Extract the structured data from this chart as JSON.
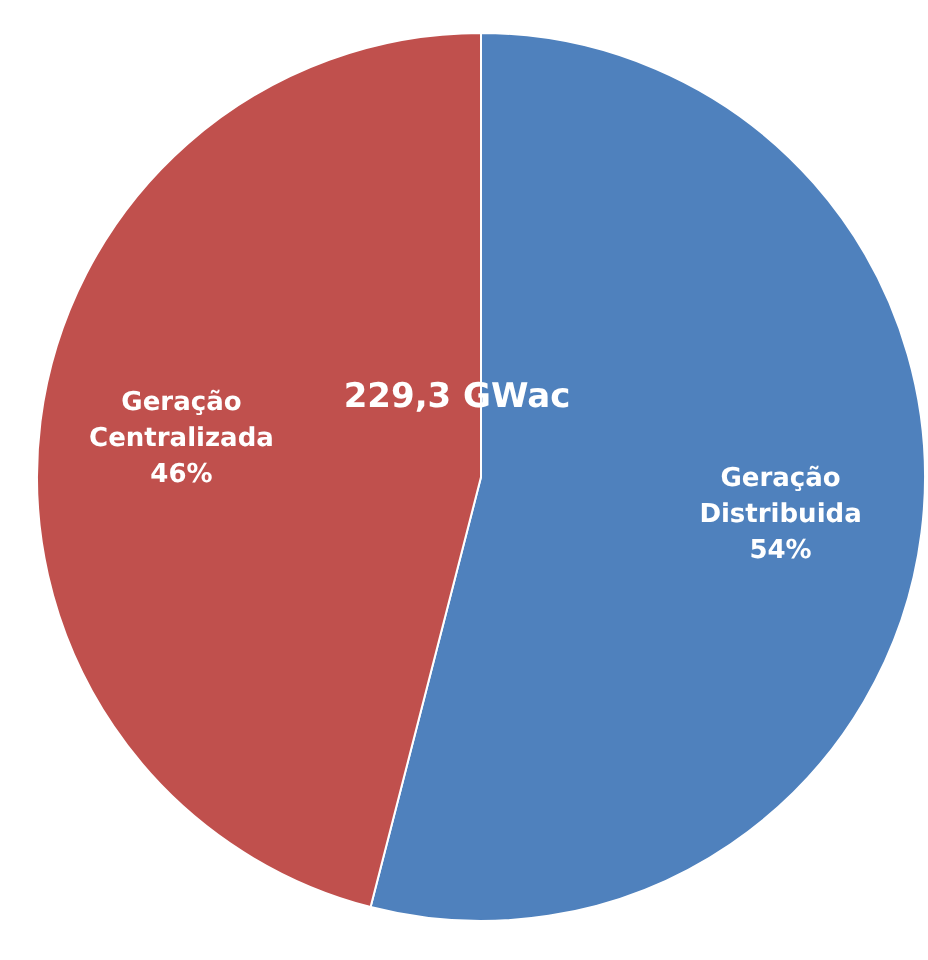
{
  "chart_data": {
    "type": "pie",
    "categories": [
      "Geração\nDistribuida",
      "Geração\nCentralizada"
    ],
    "values": [
      54,
      46
    ],
    "value_labels": [
      "54%",
      "46%"
    ],
    "colors": [
      "#4f81bd",
      "#c0504d"
    ],
    "annotations": [
      "229,3 GWac"
    ]
  }
}
